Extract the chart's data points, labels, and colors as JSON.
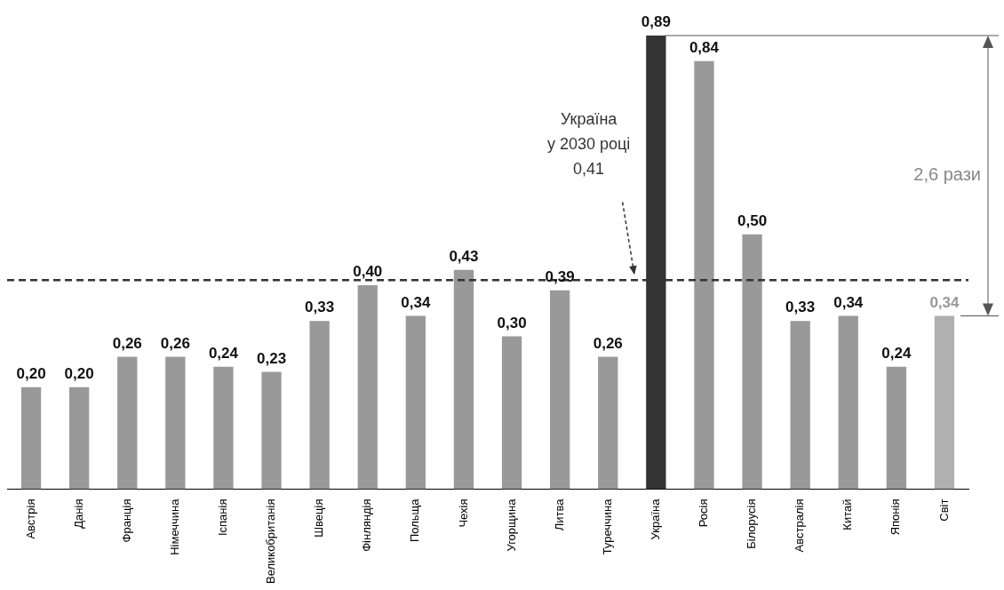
{
  "chart_data": {
    "type": "bar",
    "categories": [
      "Австрія",
      "Данія",
      "Франція",
      "Німеччина",
      "Іспанія",
      "Великобританія",
      "Швеція",
      "Фінляндія",
      "Польща",
      "Чехія",
      "Угорщина",
      "Литва",
      "Туреччина",
      "Україна",
      "Росія",
      "Білорусія",
      "Австралія",
      "Китай",
      "Японія",
      "Світ"
    ],
    "values": [
      0.2,
      0.2,
      0.26,
      0.26,
      0.24,
      0.23,
      0.33,
      0.4,
      0.34,
      0.43,
      0.3,
      0.39,
      0.26,
      0.89,
      0.84,
      0.5,
      0.33,
      0.34,
      0.24,
      0.34
    ],
    "colors": [
      "#999999",
      "#999999",
      "#999999",
      "#999999",
      "#999999",
      "#999999",
      "#999999",
      "#999999",
      "#999999",
      "#999999",
      "#999999",
      "#999999",
      "#999999",
      "#333333",
      "#999999",
      "#999999",
      "#999999",
      "#999999",
      "#999999",
      "#b0b0b0"
    ],
    "value_labels": [
      "0,20",
      "0,20",
      "0,26",
      "0,26",
      "0,24",
      "0,23",
      "0,33",
      "0,40",
      "0,34",
      "0,43",
      "0,30",
      "0,39",
      "0,26",
      "0,89",
      "0,84",
      "0,50",
      "0,33",
      "0,34",
      "0,24",
      "0,34"
    ],
    "ref_lines": [
      {
        "axis": "y",
        "value": 0.41,
        "label": "Україна\nу 2030 році\n0,41",
        "color": "#333333",
        "line_style": "dashed"
      }
    ],
    "annotations": [
      "2,6 рази"
    ],
    "grid": false,
    "legend": false
  }
}
